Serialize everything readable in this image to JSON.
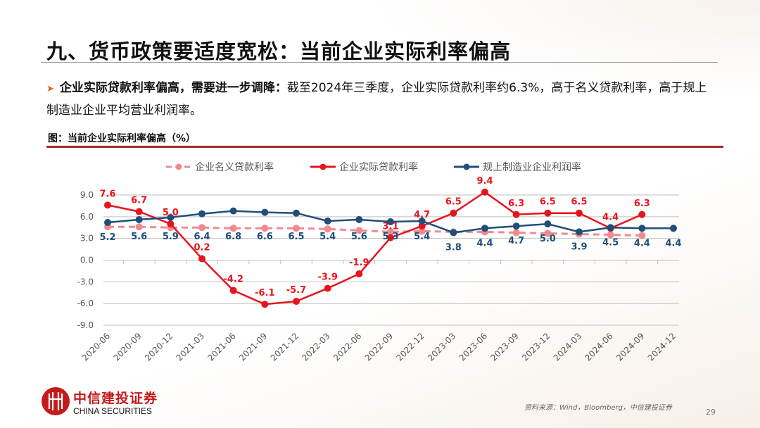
{
  "header": {
    "title": "九、货币政策要适度宽松：当前企业实际利率偏高"
  },
  "bullet": {
    "bold": "企业实际贷款利率偏高，需要进一步调降：",
    "text": "截至2024年三季度，企业实际贷款利率约6.3%，高于名义贷款利率，高于规上制造业企业平均营业利润率。"
  },
  "figure": {
    "title": "图：当前企业实际利率偏高（%）"
  },
  "chart_data": {
    "type": "line",
    "categories": [
      "2020-06",
      "2020-09",
      "2020-12",
      "2021-03",
      "2021-06",
      "2021-09",
      "2021-12",
      "2022-03",
      "2022-06",
      "2022-09",
      "2022-12",
      "2023-03",
      "2023-06",
      "2023-09",
      "2023-12",
      "2024-03",
      "2024-06",
      "2024-09",
      "2024-12"
    ],
    "ylim": [
      -9,
      9
    ],
    "yticks": [
      "9.0",
      "6.0",
      "3.0",
      "0.0",
      "-3.0",
      "-6.0",
      "-9.0"
    ],
    "grid": true,
    "legend": "top",
    "series": [
      {
        "name": "企业名义贷款利率",
        "color": "#f08a8f",
        "dashed": true,
        "values": [
          4.6,
          4.6,
          4.5,
          4.5,
          4.4,
          4.4,
          4.4,
          4.3,
          4.1,
          3.9,
          4.0,
          3.9,
          3.9,
          3.8,
          3.7,
          3.6,
          3.5,
          3.4,
          null
        ],
        "labels": false
      },
      {
        "name": "企业实际贷款利率",
        "color": "#e8141c",
        "dashed": false,
        "values": [
          7.6,
          6.7,
          5.0,
          0.2,
          -4.2,
          -6.1,
          -5.7,
          -3.9,
          -1.9,
          3.1,
          4.7,
          6.5,
          9.4,
          6.3,
          6.5,
          6.5,
          4.4,
          6.3,
          null
        ],
        "labels": true
      },
      {
        "name": "规上制造业企业利润率",
        "color": "#1f4e79",
        "dashed": false,
        "values": [
          5.2,
          5.6,
          5.9,
          6.4,
          6.8,
          6.6,
          6.5,
          5.4,
          5.6,
          5.3,
          5.4,
          3.8,
          4.4,
          4.7,
          5.0,
          3.9,
          4.5,
          4.4,
          4.4
        ],
        "labels": true
      }
    ]
  },
  "footer": {
    "logo_cn": "中信建投证券",
    "logo_en": "CHINA SECURITIES",
    "source": "资料来源：Wind，Bloomberg，中信建投证券",
    "page": "29"
  }
}
